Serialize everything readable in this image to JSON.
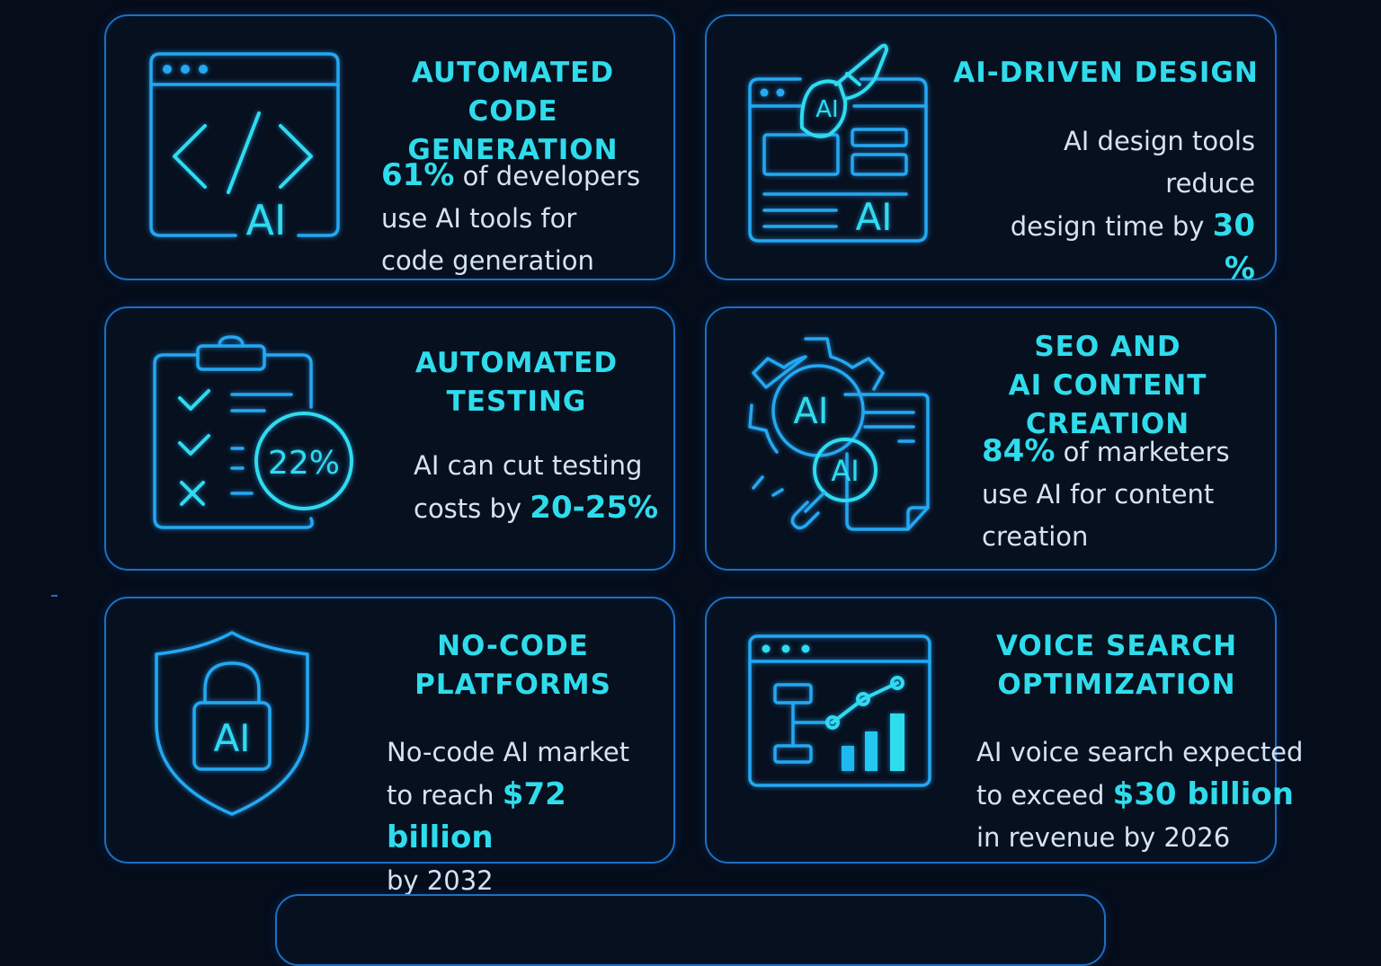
{
  "cards": [
    {
      "id": "code-gen",
      "title_lines": [
        "AUTOMATED",
        "CODE GENERATION"
      ],
      "desc": [
        {
          "text": "61%",
          "hl": true
        },
        {
          "text": " of developers"
        },
        {
          "br": true
        },
        {
          "text": "use AI tools for"
        },
        {
          "br": true
        },
        {
          "text": "code generation"
        }
      ],
      "icon": "code-window-icon",
      "icon_label": "AI"
    },
    {
      "id": "ai-design",
      "title_lines": [
        "AI-DRIVEN DESIGN"
      ],
      "desc": [
        {
          "text": "AI design tools reduce"
        },
        {
          "br": true
        },
        {
          "text": "design time by "
        },
        {
          "text": "30 %",
          "hl": true
        }
      ],
      "icon": "design-layout-brush-icon",
      "icon_label": "AI"
    },
    {
      "id": "testing",
      "title_lines": [
        "AUTOMATED",
        "TESTING"
      ],
      "desc": [
        {
          "text": "AI can cut testing"
        },
        {
          "br": true
        },
        {
          "text": "costs by "
        },
        {
          "text": "20-25%",
          "hl": true
        }
      ],
      "icon": "clipboard-checklist-icon",
      "icon_label": "22%"
    },
    {
      "id": "seo",
      "title_lines": [
        "SEO AND",
        "AI CONTENT CREATION"
      ],
      "desc": [
        {
          "text": "84%",
          "hl": true
        },
        {
          "text": " of marketers"
        },
        {
          "br": true
        },
        {
          "text": "use AI for content"
        },
        {
          "br": true
        },
        {
          "text": "creation"
        }
      ],
      "icon": "gear-document-magnifier-icon",
      "icon_label": "AI"
    },
    {
      "id": "no-code",
      "title_lines": [
        "NO-CODE",
        "PLATFORMS"
      ],
      "desc": [
        {
          "text": "No-code AI market"
        },
        {
          "br": true
        },
        {
          "text": "to reach "
        },
        {
          "text": "$72 billion",
          "hl": true
        },
        {
          "br": true
        },
        {
          "text": "by 2032"
        }
      ],
      "icon": "shield-lock-icon",
      "icon_label": "AI"
    },
    {
      "id": "voice",
      "title_lines": [
        "VOICE SEARCH",
        "OPTIMIZATION"
      ],
      "desc": [
        {
          "text": "AI voice search expected"
        },
        {
          "br": true
        },
        {
          "text": "to exceed "
        },
        {
          "text": "$30 billion",
          "hl": true
        },
        {
          "br": true
        },
        {
          "text": "in revenue by 2026"
        }
      ],
      "icon": "analytics-window-icon"
    }
  ],
  "colors": {
    "background": "#050c1a",
    "border": "#1d6fc4",
    "accent": "#2fdcec",
    "text": "#d6e3f3",
    "icon_stroke": "#24a8f2"
  }
}
